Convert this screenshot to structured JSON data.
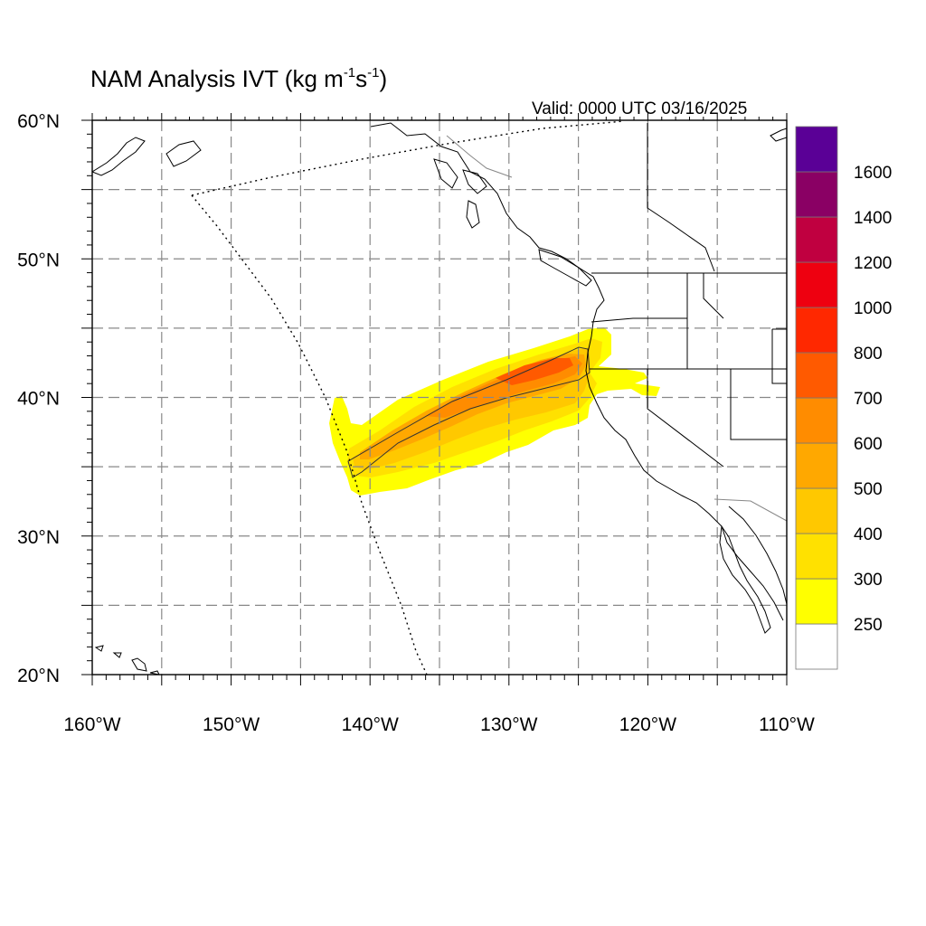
{
  "title": {
    "prefix": "NAM Analysis IVT (kg m",
    "exp1": "-1",
    "mid": "s",
    "exp2": "-1",
    "suffix": ")"
  },
  "valid_label": "Valid: 0000 UTC 03/16/2025",
  "map": {
    "lon_range": [
      -160,
      -110
    ],
    "lat_range": [
      20,
      60
    ],
    "lon_ticks": [
      {
        "value": -160,
        "label": "160°W"
      },
      {
        "value": -150,
        "label": "150°W"
      },
      {
        "value": -140,
        "label": "140°W"
      },
      {
        "value": -130,
        "label": "130°W"
      },
      {
        "value": -120,
        "label": "120°W"
      },
      {
        "value": -110,
        "label": "110°W"
      }
    ],
    "lat_ticks": [
      {
        "value": 60,
        "label": "60°N"
      },
      {
        "value": 50,
        "label": "50°N"
      },
      {
        "value": 40,
        "label": "40°N"
      },
      {
        "value": 30,
        "label": "30°N"
      },
      {
        "value": 20,
        "label": "20°N"
      }
    ],
    "grid_lons": [
      -155,
      -150,
      -145,
      -140,
      -135,
      -130,
      -125,
      -120,
      -115
    ],
    "grid_lats": [
      25,
      30,
      35,
      40,
      45,
      50,
      55
    ],
    "grid": true
  },
  "colorbar": {
    "labels": [
      "250",
      "300",
      "400",
      "500",
      "600",
      "700",
      "800",
      "1000",
      "1200",
      "1400",
      "1600"
    ],
    "colors": [
      "#ffffff",
      "#ffff00",
      "#ffe100",
      "#ffc800",
      "#ffa800",
      "#ff8c00",
      "#ff5a00",
      "#ff2800",
      "#ee0010",
      "#c00040",
      "#8a0064",
      "#5a0096"
    ]
  },
  "ivt_colors": {
    "c300": "#ffff00",
    "c400": "#ffe100",
    "c500": "#ffc800",
    "c600": "#ffa800",
    "c700": "#ff8c00",
    "c800": "#ff5a00"
  }
}
